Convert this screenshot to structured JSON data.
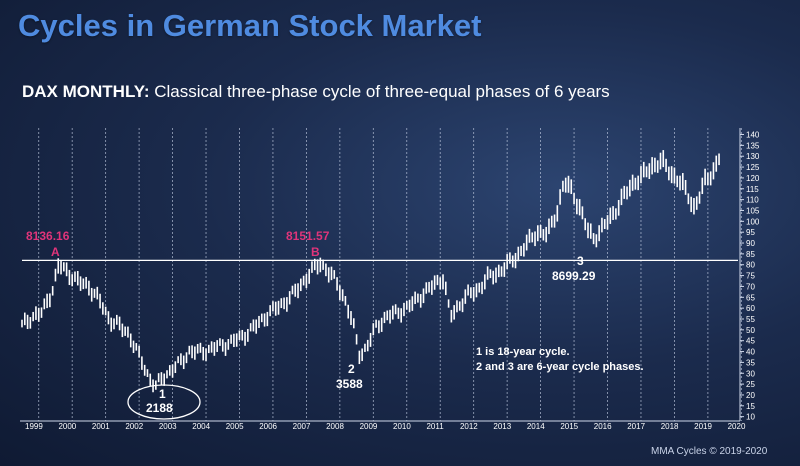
{
  "title": "Cycles in German Stock Market",
  "subtitle": {
    "bold": "DAX MONTHLY:",
    "rest": " Classical three-phase cycle of three-equal phases of 6 years"
  },
  "footer": "MMA Cycles © 2019-2020",
  "colors": {
    "title": "#4f8be0",
    "price_bars": "#ffffff",
    "highlight": "#e0347a"
  },
  "chart_data": {
    "type": "line",
    "xlabel": "",
    "ylabel": "",
    "x_tick_labels": [
      "1999",
      "2000",
      "2001",
      "2002",
      "2003",
      "2004",
      "2005",
      "2006",
      "2007",
      "2008",
      "2009",
      "2010",
      "2011",
      "2012",
      "2013",
      "2014",
      "2015",
      "2016",
      "2017",
      "2018",
      "2019",
      "2020"
    ],
    "y_tick_labels": [
      140,
      135,
      130,
      125,
      120,
      115,
      110,
      105,
      100,
      95,
      90,
      85,
      80,
      75,
      70,
      65,
      60,
      55,
      50,
      45,
      40,
      35,
      30,
      25,
      20,
      15,
      10
    ],
    "ylim": [
      8,
      143
    ],
    "xlim": [
      1999.0,
      2020.4
    ],
    "horizontal_line": 82,
    "series": [
      {
        "x": [
          1999.0,
          1999.3,
          1999.6,
          1999.9,
          2000.1,
          2000.4,
          2000.7,
          2001.0,
          2001.3,
          2001.6,
          2001.9,
          2002.2,
          2002.5,
          2002.8,
          2003.0,
          2003.2,
          2003.5,
          2003.8,
          2004.0,
          2004.4,
          2004.8,
          2005.2,
          2005.6,
          2006.0,
          2006.4,
          2006.8,
          2007.2,
          2007.6,
          2007.9,
          2008.1,
          2008.4,
          2008.7,
          2008.9,
          2009.1,
          2009.3,
          2009.6,
          2009.9,
          2010.2,
          2010.5,
          2010.8,
          2011.1,
          2011.4,
          2011.6,
          2011.8,
          2012.0,
          2012.3,
          2012.6,
          2012.9,
          2013.2,
          2013.5,
          2013.8,
          2014.1,
          2014.4,
          2014.7,
          2015.0,
          2015.2,
          2015.4,
          2015.7,
          2015.9,
          2016.1,
          2016.4,
          2016.7,
          2017.0,
          2017.3,
          2017.6,
          2017.9,
          2018.1,
          2018.4,
          2018.7,
          2018.9,
          2019.1,
          2019.4,
          2019.7,
          2019.9
        ],
        "values": [
          52,
          56,
          58,
          68,
          80,
          76,
          72,
          70,
          64,
          55,
          52,
          48,
          38,
          28,
          24,
          28,
          32,
          36,
          40,
          40,
          42,
          44,
          47,
          52,
          58,
          62,
          68,
          76,
          81,
          78,
          72,
          62,
          52,
          38,
          42,
          52,
          56,
          58,
          60,
          64,
          68,
          72,
          74,
          56,
          60,
          66,
          68,
          74,
          76,
          80,
          84,
          90,
          95,
          94,
          105,
          118,
          115,
          105,
          96,
          92,
          98,
          104,
          112,
          118,
          122,
          126,
          128,
          122,
          118,
          112,
          106,
          118,
          124,
          132
        ]
      }
    ],
    "annotations": {
      "peak_a_value": "8136.16",
      "peak_a_letter": "A",
      "peak_b_value": "8151.57",
      "peak_b_letter": "B",
      "low_1_label": "1",
      "low_1_value": "2188",
      "low_2_label": "2",
      "low_2_value": "3588",
      "mid_3_label": "3",
      "mid_3_value": "8699.29",
      "note_line1": "1 is 18-year cycle.",
      "note_line2": "2 and 3 are 6-year cycle phases."
    }
  }
}
